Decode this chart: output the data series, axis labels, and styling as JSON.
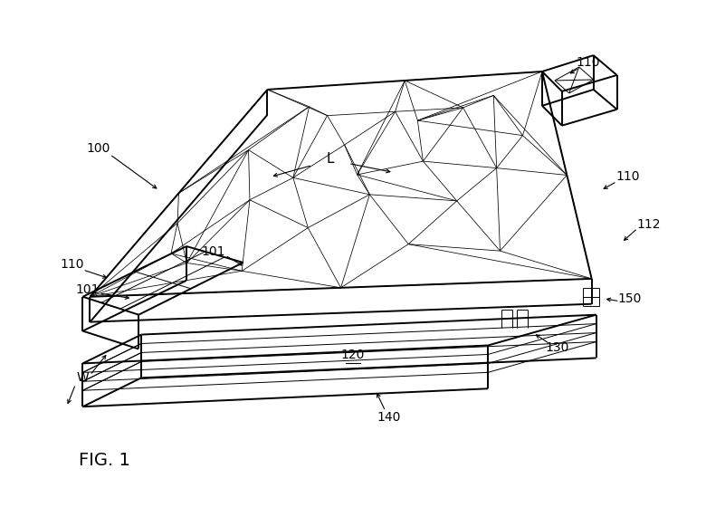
{
  "bg_color": "#ffffff",
  "line_color": "#000000",
  "fig_label": "FIG. 1",
  "lw_thick": 1.4,
  "lw_thin": 0.7,
  "lw_mesh": 0.55
}
